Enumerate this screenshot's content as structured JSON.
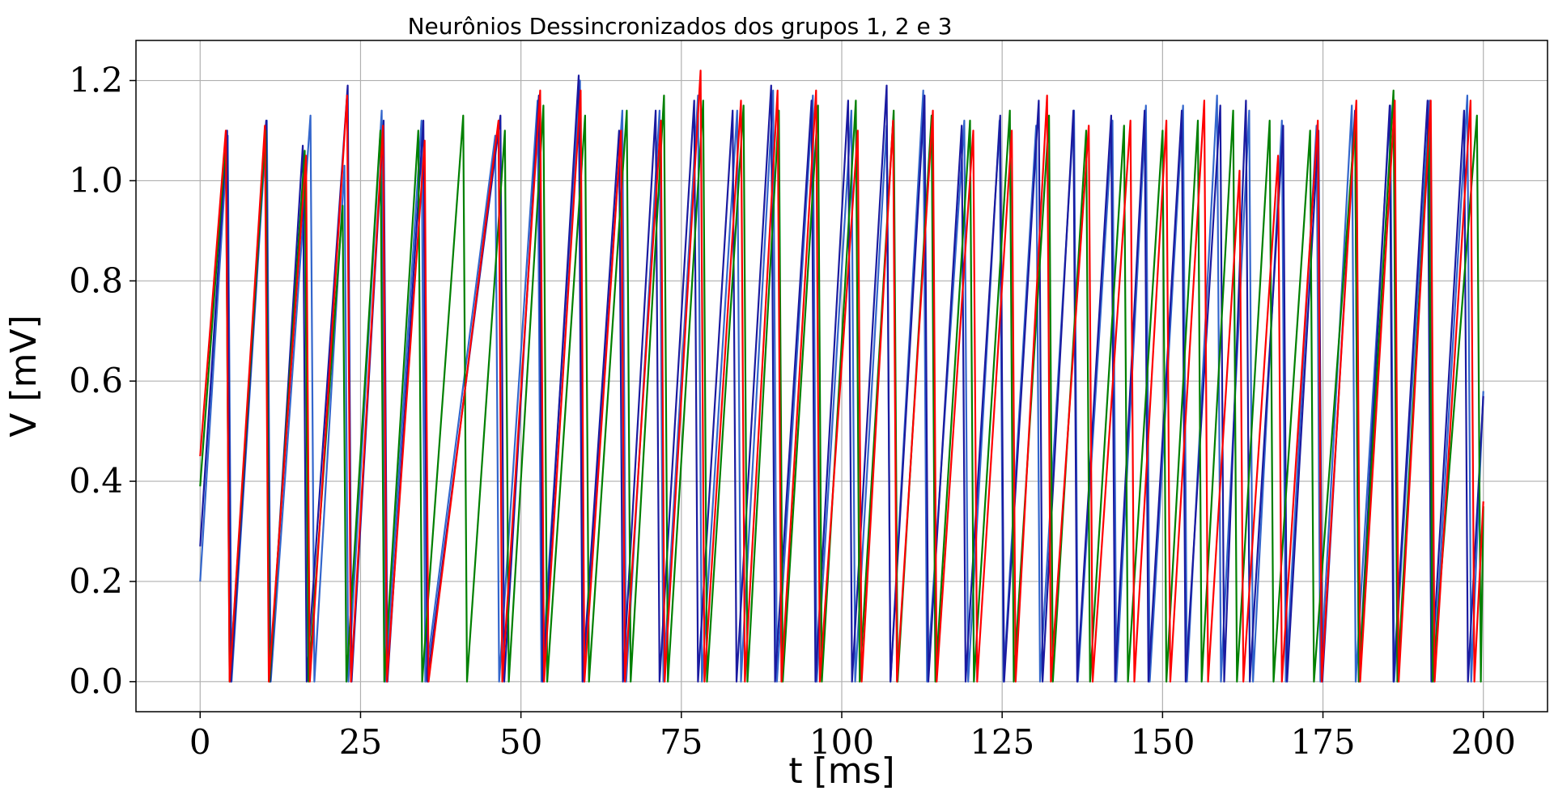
{
  "chart_data": {
    "type": "line",
    "title": "Neurônios Dessincronizados dos grupos 1, 2 e 3",
    "xlabel": "t [ms]",
    "ylabel": "V [mV]",
    "xlim": [
      -10,
      210
    ],
    "ylim": [
      -0.06,
      1.28
    ],
    "x_ticks": [
      0,
      25,
      50,
      75,
      100,
      125,
      150,
      175,
      200
    ],
    "y_ticks": [
      0.0,
      0.2,
      0.4,
      0.6,
      0.8,
      1.0,
      1.2
    ],
    "x_tick_labels": [
      "0",
      "25",
      "50",
      "75",
      "100",
      "125",
      "150",
      "175",
      "200"
    ],
    "y_tick_labels": [
      "0.0",
      "0.2",
      "0.4",
      "0.6",
      "0.8",
      "1.0",
      "1.2"
    ],
    "grid": true,
    "series": [
      {
        "color": "#3366cc",
        "start": 0.2,
        "spikes": [
          [
            4.3,
            1.09
          ],
          [
            10.4,
            1.12
          ],
          [
            17.2,
            1.13
          ],
          [
            22.5,
            1.03
          ],
          [
            28.3,
            1.14
          ],
          [
            34.5,
            1.12
          ],
          [
            46.0,
            1.09
          ],
          [
            52.6,
            1.16
          ],
          [
            59.2,
            1.2
          ],
          [
            65.8,
            1.14
          ],
          [
            71.6,
            1.14
          ],
          [
            77.6,
            1.17
          ],
          [
            83.7,
            1.14
          ],
          [
            89.3,
            1.18
          ],
          [
            95.5,
            1.17
          ],
          [
            101.5,
            1.14
          ],
          [
            107.0,
            1.11
          ],
          [
            112.7,
            1.18
          ],
          [
            119.1,
            1.12
          ],
          [
            124.6,
            1.12
          ],
          [
            130.3,
            1.11
          ],
          [
            136.2,
            1.14
          ],
          [
            142.2,
            1.12
          ],
          [
            147.4,
            1.15
          ],
          [
            153.2,
            1.15
          ],
          [
            158.5,
            1.17
          ],
          [
            163.5,
            1.14
          ],
          [
            168.6,
            1.12
          ],
          [
            174.0,
            1.11
          ],
          [
            179.5,
            1.15
          ],
          [
            185.5,
            1.15
          ],
          [
            191.6,
            1.16
          ],
          [
            197.5,
            1.17
          ]
        ],
        "end": 0.58
      },
      {
        "color": "#1a1aa0",
        "start": 0.27,
        "spikes": [
          [
            4.2,
            1.1
          ],
          [
            10.3,
            1.12
          ],
          [
            16.0,
            1.07
          ],
          [
            23.0,
            1.19
          ],
          [
            28.6,
            1.12
          ],
          [
            34.8,
            1.12
          ],
          [
            46.8,
            1.13
          ],
          [
            52.8,
            1.17
          ],
          [
            59.0,
            1.21
          ],
          [
            65.3,
            1.1
          ],
          [
            71.0,
            1.14
          ],
          [
            77.0,
            1.16
          ],
          [
            83.0,
            1.14
          ],
          [
            89.0,
            1.19
          ],
          [
            95.3,
            1.16
          ],
          [
            101.0,
            1.16
          ],
          [
            107.0,
            1.19
          ],
          [
            112.9,
            1.17
          ],
          [
            118.7,
            1.11
          ],
          [
            124.7,
            1.13
          ],
          [
            130.7,
            1.16
          ],
          [
            136.1,
            1.14
          ],
          [
            142.0,
            1.13
          ],
          [
            147.2,
            1.14
          ],
          [
            153.0,
            1.14
          ],
          [
            159.0,
            1.15
          ],
          [
            163.0,
            1.16
          ],
          [
            168.8,
            1.11
          ],
          [
            174.3,
            1.1
          ],
          [
            180.0,
            1.14
          ],
          [
            185.4,
            1.15
          ],
          [
            191.3,
            1.16
          ],
          [
            197.0,
            1.14
          ]
        ],
        "end": 0.57
      },
      {
        "color": "#008000",
        "start": 0.39,
        "spikes": [
          [
            4.0,
            1.08
          ],
          [
            10.2,
            1.1
          ],
          [
            16.3,
            1.06
          ],
          [
            22.2,
            0.95
          ],
          [
            28.1,
            1.1
          ],
          [
            34.0,
            1.1
          ],
          [
            41.0,
            1.13
          ],
          [
            47.5,
            1.1
          ],
          [
            53.5,
            1.15
          ],
          [
            60.0,
            1.13
          ],
          [
            66.5,
            1.14
          ],
          [
            72.3,
            1.17
          ],
          [
            78.4,
            1.16
          ],
          [
            84.7,
            1.15
          ],
          [
            90.2,
            1.14
          ],
          [
            96.3,
            1.15
          ],
          [
            102.2,
            1.16
          ],
          [
            108.1,
            1.14
          ],
          [
            114.0,
            1.13
          ],
          [
            120.0,
            1.12
          ],
          [
            126.2,
            1.14
          ],
          [
            132.3,
            1.13
          ],
          [
            138.1,
            1.1
          ],
          [
            144.0,
            1.11
          ],
          [
            150.0,
            1.1
          ],
          [
            155.5,
            1.12
          ],
          [
            161.0,
            1.14
          ],
          [
            166.7,
            1.12
          ],
          [
            173.0,
            1.1
          ],
          [
            180.0,
            1.12
          ],
          [
            186.0,
            1.18
          ],
          [
            191.5,
            1.1
          ],
          [
            199.0,
            1.13
          ]
        ],
        "end": 0.35
      },
      {
        "color": "#ff0000",
        "start": 0.45,
        "spikes": [
          [
            4.0,
            1.1
          ],
          [
            10.1,
            1.11
          ],
          [
            16.5,
            1.05
          ],
          [
            22.9,
            1.17
          ],
          [
            28.5,
            1.11
          ],
          [
            35.0,
            1.08
          ],
          [
            46.5,
            1.12
          ],
          [
            53.0,
            1.18
          ],
          [
            59.3,
            1.18
          ],
          [
            65.6,
            1.1
          ],
          [
            71.8,
            1.12
          ],
          [
            78.0,
            1.22
          ],
          [
            84.3,
            1.16
          ],
          [
            90.0,
            1.18
          ],
          [
            96.0,
            1.18
          ],
          [
            102.5,
            1.1
          ],
          [
            108.0,
            1.12
          ],
          [
            114.2,
            1.14
          ],
          [
            120.5,
            1.1
          ],
          [
            126.5,
            1.1
          ],
          [
            132.0,
            1.17
          ],
          [
            138.5,
            1.11
          ],
          [
            145.0,
            1.12
          ],
          [
            150.6,
            1.12
          ],
          [
            156.5,
            1.16
          ],
          [
            162.0,
            1.02
          ],
          [
            168.0,
            1.05
          ],
          [
            174.2,
            1.12
          ],
          [
            180.2,
            1.16
          ],
          [
            186.2,
            1.16
          ],
          [
            191.8,
            1.16
          ],
          [
            198.0,
            1.16
          ]
        ],
        "end": 0.36
      }
    ]
  }
}
